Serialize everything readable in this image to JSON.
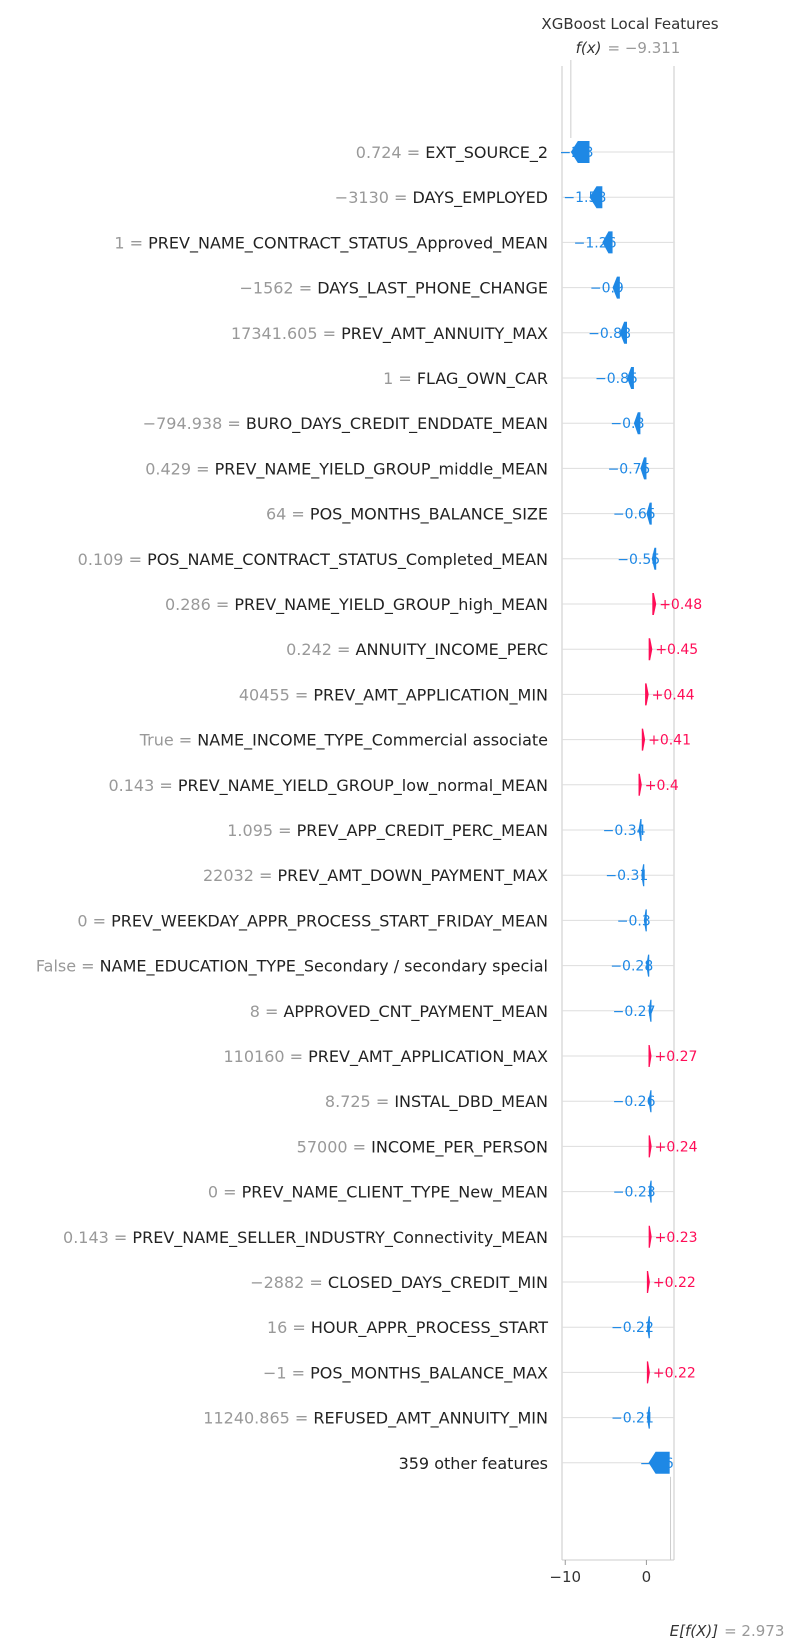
{
  "chart_data": {
    "type": "waterfall",
    "title": "XGBoost Local Features",
    "fx_label": "f(x)",
    "fx_value": "= −9.311",
    "ex_label": "E[f(X)]",
    "ex_value": "= 2.973",
    "base_value": 2.973,
    "final_value": -9.311,
    "xlim": [
      -10.4,
      3.4
    ],
    "xticks": [
      {
        "value": -10,
        "label": "−10"
      },
      {
        "value": 0,
        "label": "0"
      }
    ],
    "colors": {
      "negative": "#1E88E5",
      "positive": "#FF0D57",
      "grid": "#dddddd"
    },
    "rows": [
      {
        "feature_value": "0.724",
        "feature": "EXT_SOURCE_2",
        "contribution": -2.3,
        "label": "−2.3"
      },
      {
        "feature_value": "−3130",
        "feature": "DAYS_EMPLOYED",
        "contribution": -1.58,
        "label": "−1.58"
      },
      {
        "feature_value": "1",
        "feature": "PREV_NAME_CONTRACT_STATUS_Approved_MEAN",
        "contribution": -1.26,
        "label": "−1.26"
      },
      {
        "feature_value": "−1562",
        "feature": "DAYS_LAST_PHONE_CHANGE",
        "contribution": -0.9,
        "label": "−0.9"
      },
      {
        "feature_value": "17341.605",
        "feature": "PREV_AMT_ANNUITY_MAX",
        "contribution": -0.88,
        "label": "−0.88"
      },
      {
        "feature_value": "1",
        "feature": "FLAG_OWN_CAR",
        "contribution": -0.85,
        "label": "−0.85"
      },
      {
        "feature_value": "−794.938",
        "feature": "BURO_DAYS_CREDIT_ENDDATE_MEAN",
        "contribution": -0.8,
        "label": "−0.8"
      },
      {
        "feature_value": "0.429",
        "feature": "PREV_NAME_YIELD_GROUP_middle_MEAN",
        "contribution": -0.75,
        "label": "−0.75"
      },
      {
        "feature_value": "64",
        "feature": "POS_MONTHS_BALANCE_SIZE",
        "contribution": -0.65,
        "label": "−0.65"
      },
      {
        "feature_value": "0.109",
        "feature": "POS_NAME_CONTRACT_STATUS_Completed_MEAN",
        "contribution": -0.55,
        "label": "−0.55"
      },
      {
        "feature_value": "0.286",
        "feature": "PREV_NAME_YIELD_GROUP_high_MEAN",
        "contribution": 0.48,
        "label": "+0.48"
      },
      {
        "feature_value": "0.242",
        "feature": "ANNUITY_INCOME_PERC",
        "contribution": 0.45,
        "label": "+0.45"
      },
      {
        "feature_value": "40455",
        "feature": "PREV_AMT_APPLICATION_MIN",
        "contribution": 0.44,
        "label": "+0.44"
      },
      {
        "feature_value": "True",
        "feature": "NAME_INCOME_TYPE_Commercial associate",
        "contribution": 0.41,
        "label": "+0.41"
      },
      {
        "feature_value": "0.143",
        "feature": "PREV_NAME_YIELD_GROUP_low_normal_MEAN",
        "contribution": 0.4,
        "label": "+0.4"
      },
      {
        "feature_value": "1.095",
        "feature": "PREV_APP_CREDIT_PERC_MEAN",
        "contribution": -0.34,
        "label": "−0.34"
      },
      {
        "feature_value": "22032",
        "feature": "PREV_AMT_DOWN_PAYMENT_MAX",
        "contribution": -0.31,
        "label": "−0.31"
      },
      {
        "feature_value": "0",
        "feature": "PREV_WEEKDAY_APPR_PROCESS_START_FRIDAY_MEAN",
        "contribution": -0.3,
        "label": "−0.3"
      },
      {
        "feature_value": "False",
        "feature": "NAME_EDUCATION_TYPE_Secondary / secondary special",
        "contribution": -0.28,
        "label": "−0.28"
      },
      {
        "feature_value": "8",
        "feature": "APPROVED_CNT_PAYMENT_MEAN",
        "contribution": -0.27,
        "label": "−0.27"
      },
      {
        "feature_value": "110160",
        "feature": "PREV_AMT_APPLICATION_MAX",
        "contribution": 0.27,
        "label": "+0.27"
      },
      {
        "feature_value": "8.725",
        "feature": "INSTAL_DBD_MEAN",
        "contribution": -0.26,
        "label": "−0.26"
      },
      {
        "feature_value": "57000",
        "feature": "INCOME_PER_PERSON",
        "contribution": 0.24,
        "label": "+0.24"
      },
      {
        "feature_value": "0",
        "feature": "PREV_NAME_CLIENT_TYPE_New_MEAN",
        "contribution": -0.23,
        "label": "−0.23"
      },
      {
        "feature_value": "0.143",
        "feature": "PREV_NAME_SELLER_INDUSTRY_Connectivity_MEAN",
        "contribution": 0.23,
        "label": "+0.23"
      },
      {
        "feature_value": "−2882",
        "feature": "CLOSED_DAYS_CREDIT_MIN",
        "contribution": 0.22,
        "label": "+0.22"
      },
      {
        "feature_value": "16",
        "feature": "HOUR_APPR_PROCESS_START",
        "contribution": -0.22,
        "label": "−0.22"
      },
      {
        "feature_value": "−1",
        "feature": "POS_MONTHS_BALANCE_MAX",
        "contribution": 0.22,
        "label": "+0.22"
      },
      {
        "feature_value": "11240.865",
        "feature": "REFUSED_AMT_ANNUITY_MIN",
        "contribution": -0.21,
        "label": "−0.21"
      },
      {
        "feature_value": "",
        "feature": "359 other features",
        "contribution": -2.6,
        "label": "−2.6"
      }
    ]
  }
}
